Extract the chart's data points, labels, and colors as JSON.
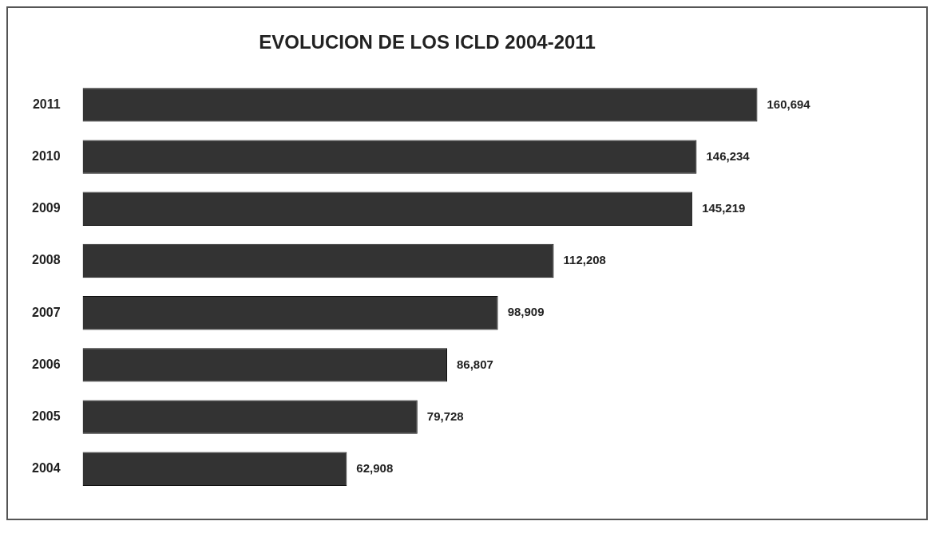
{
  "chart_data": {
    "type": "bar",
    "orientation": "horizontal",
    "title": "EVOLUCION DE LOS ICLD 2004-2011",
    "categories": [
      "2011",
      "2010",
      "2009",
      "2008",
      "2007",
      "2006",
      "2005",
      "2004"
    ],
    "values": [
      160694,
      146234,
      145219,
      112208,
      98909,
      86807,
      79728,
      62908
    ],
    "value_labels": [
      "160,694",
      "146,234",
      "145,219",
      "112,208",
      "98,909",
      "86,807",
      "79,728",
      "62,908"
    ],
    "color": "#333333",
    "legend": false
  }
}
